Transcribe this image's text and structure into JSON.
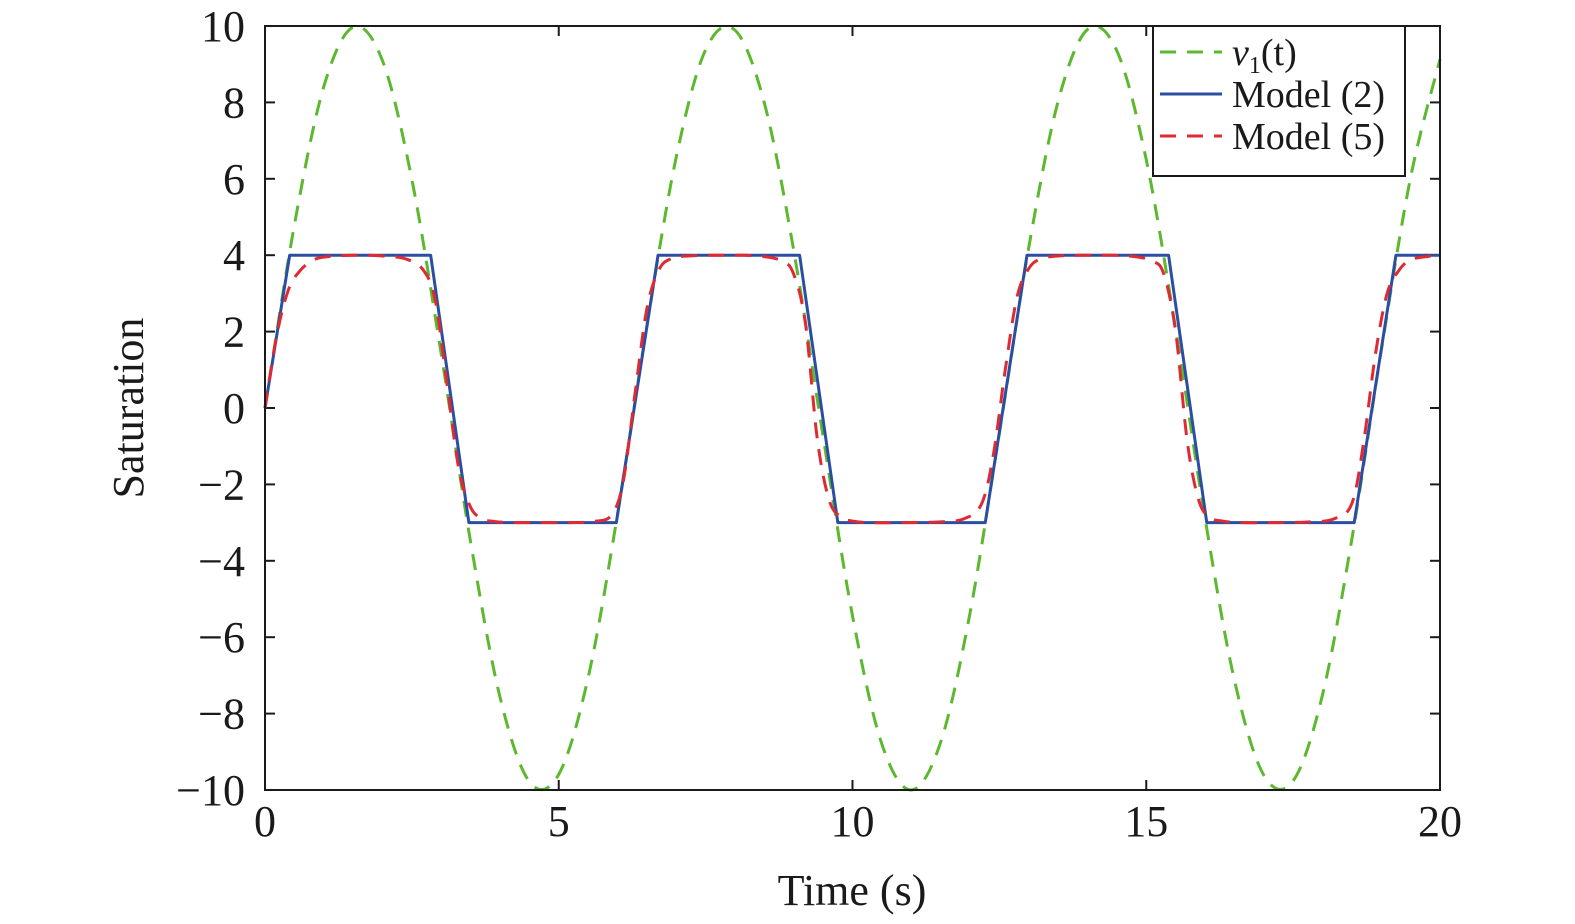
{
  "chart_data": {
    "type": "line",
    "xlabel": "Time (s)",
    "ylabel": "Saturation",
    "xlim": [
      0,
      20
    ],
    "ylim": [
      -10,
      10
    ],
    "xticks": [
      0,
      5,
      10,
      15,
      20
    ],
    "xtick_labels": [
      "0",
      "5",
      "10",
      "15",
      "20"
    ],
    "yticks": [
      -10,
      -8,
      -6,
      -4,
      -2,
      0,
      2,
      4,
      6,
      8,
      10
    ],
    "ytick_labels": [
      "−10",
      "−8",
      "−6",
      "−4",
      "−2",
      "0",
      "2",
      "4",
      "6",
      "8",
      "10"
    ],
    "grid": false,
    "legend_position": "top-right",
    "series": [
      {
        "name": "v1(t)",
        "legend_main": "v",
        "legend_sub": "1",
        "legend_tail": "(t)",
        "style": "dashed",
        "color": "#5cb82e",
        "x": [
          0,
          0.5,
          1,
          1.5,
          2,
          2.5,
          3,
          3.5,
          4,
          4.5,
          5,
          5.5,
          6,
          6.5,
          7,
          7.5,
          8,
          8.5,
          9,
          9.5,
          10,
          10.5,
          11,
          11.5,
          12,
          12.5,
          13,
          13.5,
          14,
          14.5,
          15,
          15.5,
          16,
          16.5,
          17,
          17.5,
          18,
          18.5,
          19,
          19.5,
          20
        ],
        "y": [
          0,
          4.79,
          8.41,
          9.97,
          9.09,
          5.98,
          1.41,
          -3.51,
          -7.57,
          -9.78,
          -9.59,
          -7.06,
          -2.79,
          2.15,
          6.57,
          9.38,
          9.89,
          7.98,
          4.12,
          -0.75,
          -5.44,
          -8.8,
          -10.0,
          -8.75,
          -5.37,
          -0.66,
          4.2,
          8.03,
          9.91,
          9.35,
          6.5,
          2.07,
          -2.88,
          -7.12,
          -9.61,
          -9.76,
          -7.51,
          -3.43,
          1.5,
          6.04,
          9.13
        ]
      },
      {
        "name": "Model (2)",
        "style": "solid",
        "color": "#2b4ea2",
        "x": [
          0,
          0.42,
          2.82,
          3.47,
          5.98,
          6.69,
          9.1,
          9.75,
          12.26,
          12.97,
          15.38,
          16.03,
          18.54,
          19.25,
          20
        ],
        "y": [
          0,
          4,
          4,
          -3,
          -3,
          4,
          4,
          -3,
          -3,
          4,
          4,
          -3,
          -3,
          4,
          4
        ]
      },
      {
        "name": "Model (5)",
        "style": "dashed",
        "color": "#e02a33",
        "x": [
          0,
          0.2,
          0.4,
          0.6,
          0.8,
          1.0,
          1.5,
          2.0,
          2.4,
          2.7,
          2.9,
          3.1,
          3.3,
          3.5,
          3.7,
          3.9,
          4.2,
          4.7,
          5.2,
          5.6,
          5.9,
          6.1,
          6.3,
          6.5,
          6.7,
          6.9,
          7.2,
          7.8,
          8.4,
          8.8,
          9.0,
          9.2,
          9.4,
          9.6,
          9.8,
          10.0,
          10.3,
          10.9,
          11.5,
          11.9,
          12.2,
          12.4,
          12.6,
          12.8,
          13.0,
          13.2,
          13.5,
          14.1,
          14.7,
          15.1,
          15.3,
          15.5,
          15.7,
          15.9,
          16.1,
          16.3,
          16.6,
          17.2,
          17.8,
          18.2,
          18.5,
          18.7,
          18.9,
          19.1,
          19.3,
          19.5,
          19.8,
          20
        ],
        "y": [
          0,
          1.9,
          3.1,
          3.6,
          3.85,
          3.95,
          4,
          3.98,
          3.9,
          3.6,
          2.8,
          0.6,
          -1.6,
          -2.6,
          -2.9,
          -2.97,
          -3,
          -3,
          -3,
          -2.97,
          -2.8,
          -1.9,
          0.4,
          2.6,
          3.6,
          3.9,
          3.98,
          4,
          3.98,
          3.85,
          3.5,
          2.2,
          -0.8,
          -2.4,
          -2.85,
          -2.96,
          -3,
          -3,
          -2.98,
          -2.9,
          -2.5,
          -1.2,
          1.0,
          2.9,
          3.65,
          3.9,
          3.98,
          4,
          3.98,
          3.85,
          3.5,
          2.0,
          -0.9,
          -2.45,
          -2.87,
          -2.96,
          -3,
          -3,
          -2.98,
          -2.9,
          -2.5,
          -0.9,
          1.4,
          3.0,
          3.6,
          3.88,
          3.97,
          4
        ]
      }
    ]
  }
}
